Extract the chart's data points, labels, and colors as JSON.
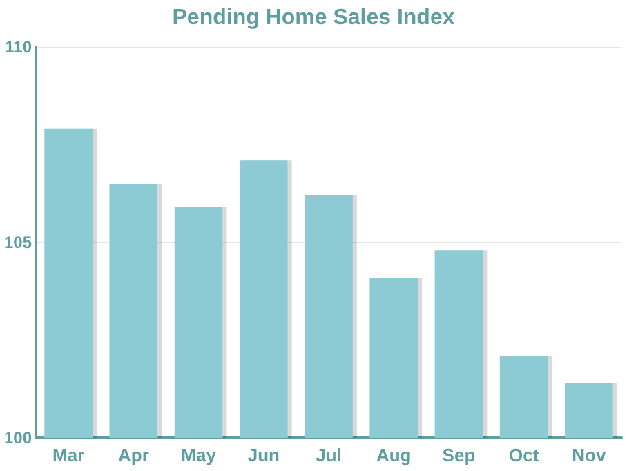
{
  "chart_data": {
    "type": "bar",
    "title": "Pending Home Sales Index",
    "categories": [
      "Mar",
      "Apr",
      "May",
      "Jun",
      "Jul",
      "Aug",
      "Sep",
      "Oct",
      "Nov"
    ],
    "values": [
      107.9,
      106.5,
      105.9,
      107.1,
      106.2,
      104.1,
      104.8,
      102.1,
      101.4
    ],
    "color": "#8ccbd4",
    "ylim": [
      100,
      110
    ],
    "yticks": [
      100,
      105,
      110
    ],
    "grid": "y"
  }
}
